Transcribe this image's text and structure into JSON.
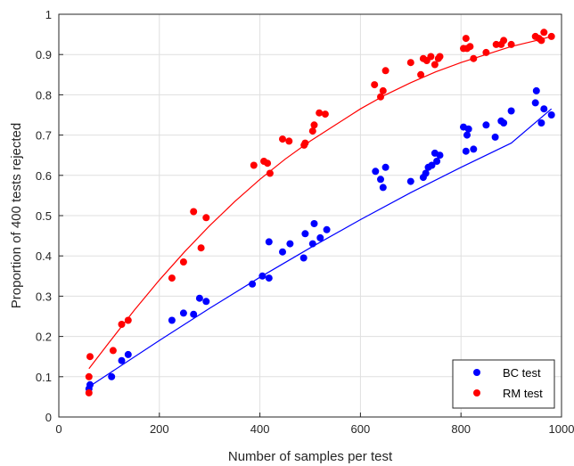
{
  "chart_data": {
    "type": "scatter",
    "title": "",
    "xlabel": "Number of samples per test",
    "ylabel": "Proportion of 400 tests rejected",
    "xlim": [
      0,
      1000
    ],
    "ylim": [
      0,
      1
    ],
    "xticks": [
      0,
      200,
      400,
      600,
      800,
      1000
    ],
    "yticks": [
      0,
      0.1,
      0.2,
      0.3,
      0.4,
      0.5,
      0.6,
      0.7,
      0.8,
      0.9,
      1
    ],
    "xtick_labels": [
      "0",
      "200",
      "400",
      "600",
      "800",
      "1000"
    ],
    "ytick_labels": [
      "0",
      "0.1",
      "0.2",
      "0.3",
      "0.4",
      "0.5",
      "0.6",
      "0.7",
      "0.8",
      "0.9",
      "1"
    ],
    "grid": true,
    "legend_position": "bottom-right",
    "series": [
      {
        "name": "BC test",
        "color": "#0000ff",
        "points": [
          [
            60,
            0.07
          ],
          [
            62,
            0.08
          ],
          [
            105,
            0.1
          ],
          [
            125,
            0.14
          ],
          [
            138,
            0.155
          ],
          [
            225,
            0.24
          ],
          [
            248,
            0.258
          ],
          [
            268,
            0.255
          ],
          [
            280,
            0.295
          ],
          [
            293,
            0.287
          ],
          [
            385,
            0.33
          ],
          [
            405,
            0.35
          ],
          [
            418,
            0.345
          ],
          [
            418,
            0.435
          ],
          [
            445,
            0.41
          ],
          [
            460,
            0.43
          ],
          [
            487,
            0.395
          ],
          [
            490,
            0.455
          ],
          [
            505,
            0.43
          ],
          [
            508,
            0.48
          ],
          [
            520,
            0.445
          ],
          [
            533,
            0.465
          ],
          [
            630,
            0.61
          ],
          [
            640,
            0.59
          ],
          [
            645,
            0.57
          ],
          [
            650,
            0.62
          ],
          [
            700,
            0.585
          ],
          [
            725,
            0.595
          ],
          [
            730,
            0.605
          ],
          [
            735,
            0.62
          ],
          [
            742,
            0.625
          ],
          [
            748,
            0.655
          ],
          [
            752,
            0.635
          ],
          [
            758,
            0.65
          ],
          [
            805,
            0.72
          ],
          [
            810,
            0.66
          ],
          [
            812,
            0.7
          ],
          [
            815,
            0.715
          ],
          [
            825,
            0.665
          ],
          [
            850,
            0.725
          ],
          [
            868,
            0.695
          ],
          [
            880,
            0.735
          ],
          [
            885,
            0.73
          ],
          [
            900,
            0.76
          ],
          [
            948,
            0.78
          ],
          [
            950,
            0.81
          ],
          [
            960,
            0.73
          ],
          [
            965,
            0.765
          ],
          [
            980,
            0.75
          ]
        ],
        "fit": [
          [
            60,
            0.075
          ],
          [
            100,
            0.108
          ],
          [
            200,
            0.19
          ],
          [
            300,
            0.27
          ],
          [
            400,
            0.347
          ],
          [
            500,
            0.42
          ],
          [
            600,
            0.49
          ],
          [
            700,
            0.557
          ],
          [
            800,
            0.62
          ],
          [
            900,
            0.68
          ],
          [
            980,
            0.765
          ]
        ]
      },
      {
        "name": "RM test",
        "color": "#ff0000",
        "points": [
          [
            60,
            0.06
          ],
          [
            60,
            0.1
          ],
          [
            62,
            0.15
          ],
          [
            108,
            0.165
          ],
          [
            125,
            0.23
          ],
          [
            138,
            0.24
          ],
          [
            225,
            0.345
          ],
          [
            248,
            0.385
          ],
          [
            268,
            0.51
          ],
          [
            283,
            0.42
          ],
          [
            293,
            0.495
          ],
          [
            388,
            0.625
          ],
          [
            408,
            0.635
          ],
          [
            415,
            0.63
          ],
          [
            420,
            0.605
          ],
          [
            445,
            0.69
          ],
          [
            458,
            0.685
          ],
          [
            488,
            0.675
          ],
          [
            490,
            0.68
          ],
          [
            505,
            0.71
          ],
          [
            508,
            0.725
          ],
          [
            518,
            0.755
          ],
          [
            530,
            0.752
          ],
          [
            628,
            0.825
          ],
          [
            640,
            0.795
          ],
          [
            645,
            0.81
          ],
          [
            650,
            0.86
          ],
          [
            700,
            0.88
          ],
          [
            720,
            0.85
          ],
          [
            725,
            0.89
          ],
          [
            732,
            0.885
          ],
          [
            740,
            0.895
          ],
          [
            748,
            0.875
          ],
          [
            755,
            0.89
          ],
          [
            758,
            0.895
          ],
          [
            805,
            0.915
          ],
          [
            810,
            0.94
          ],
          [
            812,
            0.915
          ],
          [
            818,
            0.92
          ],
          [
            825,
            0.89
          ],
          [
            850,
            0.905
          ],
          [
            870,
            0.925
          ],
          [
            880,
            0.925
          ],
          [
            885,
            0.935
          ],
          [
            900,
            0.925
          ],
          [
            948,
            0.945
          ],
          [
            955,
            0.94
          ],
          [
            960,
            0.935
          ],
          [
            965,
            0.955
          ],
          [
            980,
            0.945
          ]
        ],
        "fit": [
          [
            60,
            0.12
          ],
          [
            100,
            0.185
          ],
          [
            150,
            0.265
          ],
          [
            200,
            0.34
          ],
          [
            250,
            0.41
          ],
          [
            300,
            0.475
          ],
          [
            350,
            0.535
          ],
          [
            400,
            0.59
          ],
          [
            450,
            0.64
          ],
          [
            500,
            0.685
          ],
          [
            550,
            0.725
          ],
          [
            600,
            0.765
          ],
          [
            650,
            0.8
          ],
          [
            700,
            0.83
          ],
          [
            750,
            0.857
          ],
          [
            800,
            0.88
          ],
          [
            850,
            0.9
          ],
          [
            900,
            0.92
          ],
          [
            950,
            0.935
          ],
          [
            980,
            0.945
          ]
        ]
      }
    ]
  }
}
